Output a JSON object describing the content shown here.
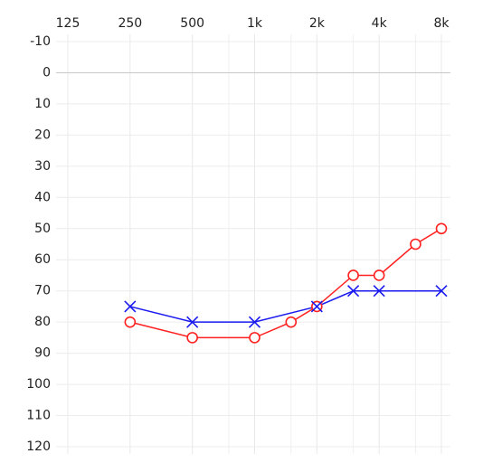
{
  "chart_data": {
    "type": "line",
    "xscale": "log",
    "xlim": [
      125,
      8000
    ],
    "xticks": [
      125,
      250,
      500,
      {
        "value": 1000,
        "label": "1k"
      },
      {
        "value": 2000,
        "label": "2k"
      },
      {
        "value": 4000,
        "label": "4k"
      },
      {
        "value": 8000,
        "label": "8k"
      }
    ],
    "xminor": [
      750,
      1500,
      3000,
      6000
    ],
    "ylim": [
      -10,
      120
    ],
    "yinverted": true,
    "yticks": [
      -10,
      0,
      10,
      20,
      30,
      40,
      50,
      60,
      70,
      80,
      90,
      100,
      110,
      120
    ],
    "grid": true,
    "series": [
      {
        "color": "#ff2020",
        "marker": "circle",
        "x": [
          250,
          500,
          1000,
          1500,
          2000,
          3000,
          4000,
          6000,
          8000
        ],
        "values": [
          80,
          85,
          85,
          80,
          75,
          65,
          65,
          55,
          50
        ]
      },
      {
        "color": "#1a1aee",
        "marker": "cross",
        "x": [
          250,
          500,
          1000,
          2000,
          3000,
          4000,
          8000
        ],
        "values": [
          75,
          80,
          80,
          75,
          70,
          70,
          70
        ]
      }
    ]
  }
}
